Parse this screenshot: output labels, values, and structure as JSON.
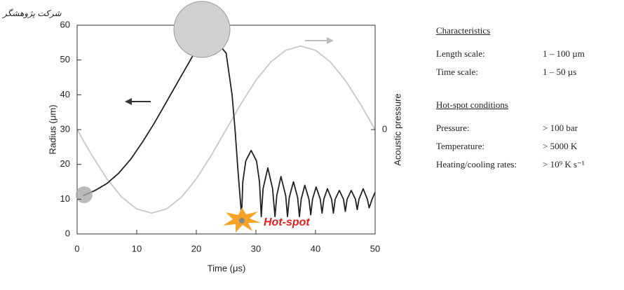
{
  "watermark": "شرکت پژوهشگر",
  "chart_data": {
    "type": "line",
    "xlabel": "Time (μs)",
    "ylabel": "Radius (μm)",
    "y2label": "Acoustic pressure",
    "annotation": "Hot-spot",
    "xlim": [
      0,
      50
    ],
    "xticks": [
      0,
      10,
      20,
      30,
      40,
      50
    ],
    "ylim": [
      0,
      60
    ],
    "yticks": [
      0,
      10,
      20,
      30,
      40,
      50,
      60
    ],
    "y2lim": [
      -1.25,
      1.25
    ],
    "y2ticks": [
      0
    ],
    "series": [
      {
        "color": "#222222",
        "x": [
          1,
          3,
          5,
          7,
          9,
          11,
          13,
          15,
          17,
          19,
          20,
          21,
          22,
          23,
          24,
          25,
          26,
          26.5,
          27,
          27.6,
          27.8,
          28.3,
          29.2,
          30.1,
          30.6,
          30.9,
          31.2,
          32,
          32.8,
          33.2,
          33.5,
          34.2,
          35,
          35.3,
          35.6,
          36.3,
          37,
          37.3,
          37.6,
          38.2,
          38.9,
          39.2,
          39.5,
          40.1,
          40.8,
          41.1,
          41.4,
          42,
          42.7,
          43,
          43.3,
          44,
          44.7,
          45,
          45.3,
          46,
          46.7,
          47,
          47.3,
          48,
          48.7,
          49,
          49.5,
          50
        ],
        "values": [
          11,
          12.5,
          14.5,
          17.5,
          21.5,
          26.5,
          32,
          38,
          44,
          50,
          53,
          55,
          56,
          55,
          54,
          52,
          40,
          30,
          18,
          5,
          15,
          21,
          24,
          21,
          15,
          5,
          13,
          19,
          13,
          5,
          11,
          16.5,
          11,
          5,
          10.5,
          15,
          10.5,
          5,
          10,
          14,
          10,
          5.5,
          10,
          13.5,
          10,
          6,
          10,
          13,
          10,
          6,
          10,
          12.5,
          10,
          6.5,
          10,
          12.5,
          10,
          7,
          10,
          13,
          10,
          7.5,
          10,
          12
        ]
      },
      {
        "color": "#c8c8c8",
        "axis": "y2",
        "x": [
          0,
          2.5,
          5,
          7.5,
          10,
          12.5,
          15,
          17.5,
          20,
          22.5,
          25,
          27.5,
          30,
          32.5,
          35,
          37.5,
          40,
          42.5,
          45,
          47.5,
          50
        ],
        "values": [
          0,
          -0.31,
          -0.59,
          -0.81,
          -0.95,
          -1,
          -0.95,
          -0.81,
          -0.59,
          -0.31,
          0,
          0.31,
          0.59,
          0.81,
          0.95,
          1,
          0.95,
          0.81,
          0.59,
          0.31,
          0
        ]
      }
    ]
  },
  "panel": {
    "sections": [
      {
        "heading": "Characteristics",
        "rows": [
          [
            "Length scale:",
            "1 – 100 µm"
          ],
          [
            "Time scale:",
            "1 – 50 µs"
          ]
        ]
      },
      {
        "heading": "Hot-spot conditions",
        "rows": [
          [
            "Pressure:",
            "> 100 bar"
          ],
          [
            "Temperature:",
            "> 5000 K"
          ],
          [
            "Heating/cooling rates:",
            "> 10⁹ K s⁻¹"
          ]
        ]
      }
    ]
  }
}
